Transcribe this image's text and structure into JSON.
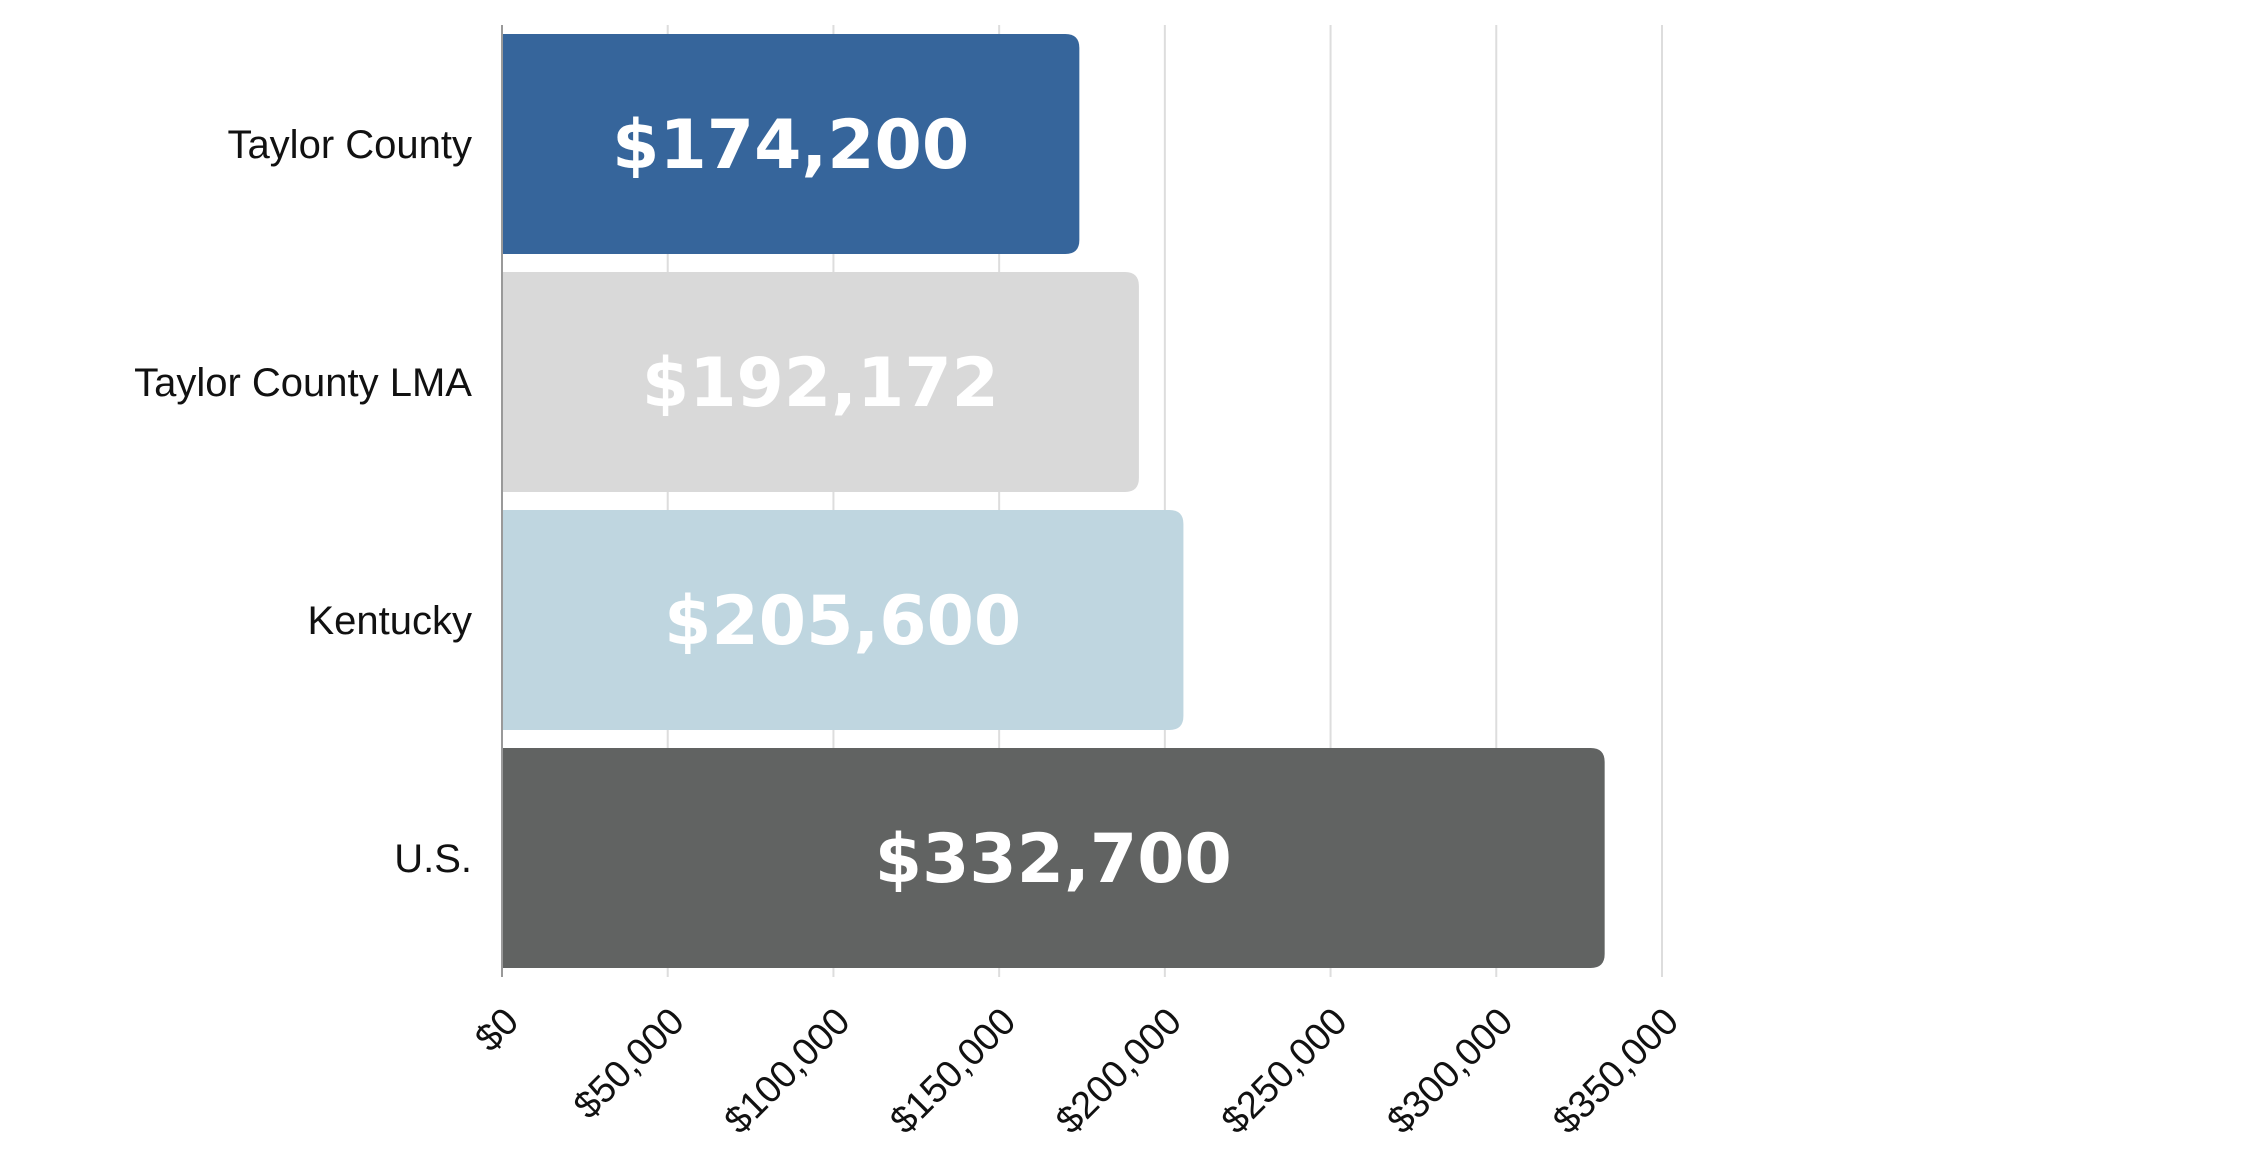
{
  "chart_data": {
    "type": "bar",
    "orientation": "horizontal",
    "categories": [
      "Taylor County",
      "Taylor County LMA",
      "Kentucky",
      "U.S."
    ],
    "values": [
      174200,
      192172,
      205600,
      332700
    ],
    "data_labels": [
      "$174,200",
      "$192,172",
      "$205,600",
      "$332,700"
    ],
    "bar_colors": [
      "#36659b",
      "#d9d9d9",
      "#bfd6e0",
      "#616362"
    ],
    "x_ticks": [
      0,
      50000,
      100000,
      150000,
      200000,
      250000,
      300000,
      350000
    ],
    "x_tick_labels": [
      "$0",
      "$50,000",
      "$100,000",
      "$150,000",
      "$200,000",
      "$250,000",
      "$300,000",
      "$350,000"
    ],
    "xlim": [
      0,
      350000
    ],
    "title": "",
    "xlabel": "",
    "ylabel": "",
    "grid": true,
    "legend": "none"
  }
}
